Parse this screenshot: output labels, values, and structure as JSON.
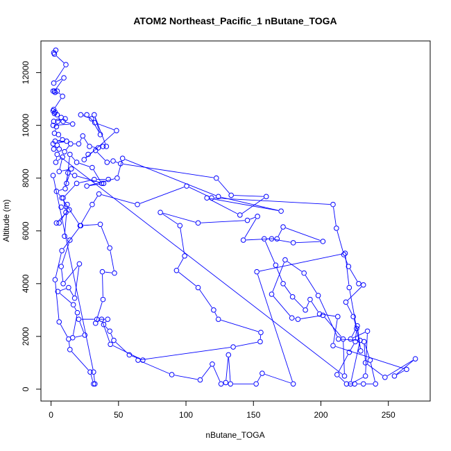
{
  "chart_data": {
    "type": "scatter",
    "title": "ATOM2 Northeast_Pacific_1 nButane_TOGA",
    "xlabel": "nButane_TOGA",
    "ylabel": "Altitude (m)",
    "xlim": [
      -7.5,
      281
    ],
    "ylim": [
      -450,
      13200
    ],
    "x_ticks": [
      0,
      50,
      100,
      150,
      200,
      250
    ],
    "y_ticks": [
      0,
      2000,
      4000,
      6000,
      8000,
      10000,
      12000
    ],
    "series_color": "#0000ff",
    "grid": false,
    "legend": "none",
    "series": [
      {
        "points": [
          [
            2.0,
            12750
          ],
          [
            3.5,
            12850
          ],
          [
            2.5,
            12700
          ],
          [
            11.0,
            12300
          ],
          [
            2.0,
            11600
          ],
          [
            9.5,
            11800
          ],
          [
            2.5,
            11300
          ],
          [
            3.0,
            11250
          ],
          [
            1.5,
            11300
          ],
          [
            4.5,
            11300
          ],
          [
            8.5,
            11100
          ],
          [
            2.0,
            10600
          ],
          [
            1.5,
            10550
          ],
          [
            3.0,
            10500
          ],
          [
            2.5,
            10450
          ],
          [
            4.5,
            10400
          ],
          [
            7.5,
            10300
          ],
          [
            10.5,
            10250
          ],
          [
            2.0,
            10150
          ],
          [
            5.0,
            10150
          ],
          [
            9.0,
            10150
          ],
          [
            16.0,
            10050
          ],
          [
            1.5,
            10000
          ],
          [
            4.0,
            9950
          ],
          [
            2.5,
            9700
          ],
          [
            5.5,
            9650
          ],
          [
            8.5,
            9450
          ],
          [
            3.0,
            9400
          ],
          [
            11.5,
            9400
          ],
          [
            1.5,
            9300
          ],
          [
            4.5,
            9250
          ],
          [
            2.0,
            9100
          ],
          [
            6.0,
            9100
          ],
          [
            10.0,
            9000
          ],
          [
            14.5,
            9300
          ],
          [
            20.5,
            9300
          ],
          [
            23.5,
            9600
          ],
          [
            28.5,
            9200
          ],
          [
            35.0,
            9150
          ],
          [
            38.5,
            9200
          ],
          [
            41.0,
            9200
          ],
          [
            32.0,
            10400
          ],
          [
            36.5,
            9650
          ],
          [
            30.0,
            10250
          ],
          [
            22.0,
            10400
          ],
          [
            26.5,
            10400
          ],
          [
            32.5,
            10100
          ],
          [
            48.5,
            9800
          ],
          [
            24.5,
            8700
          ],
          [
            27.5,
            8900
          ],
          [
            33.0,
            9050
          ],
          [
            41.5,
            8600
          ],
          [
            46.0,
            8650
          ],
          [
            51.5,
            8550
          ],
          [
            122.5,
            8000
          ],
          [
            133.5,
            7350
          ],
          [
            159.5,
            7300
          ],
          [
            140.0,
            6600
          ],
          [
            115.5,
            7250
          ],
          [
            170.5,
            6750
          ],
          [
            124.0,
            7300
          ],
          [
            53.0,
            8750
          ],
          [
            49.0,
            8000
          ],
          [
            26.5,
            7700
          ],
          [
            39.0,
            7800
          ],
          [
            17.5,
            8100
          ],
          [
            12.5,
            8200
          ],
          [
            10.5,
            7600
          ],
          [
            4.0,
            7500
          ],
          [
            8.0,
            7250
          ],
          [
            21.5,
            6200
          ],
          [
            30.5,
            7000
          ],
          [
            35.5,
            7400
          ],
          [
            64.0,
            7000
          ],
          [
            100.5,
            7700
          ],
          [
            119.0,
            7250
          ],
          [
            209.0,
            7000
          ],
          [
            211.5,
            6100
          ],
          [
            217.0,
            5100
          ],
          [
            220.5,
            4650
          ],
          [
            228.0,
            4000
          ],
          [
            231.5,
            3950
          ],
          [
            218.5,
            3300
          ],
          [
            224.0,
            2750
          ],
          [
            226.5,
            2300
          ],
          [
            225.5,
            1800
          ],
          [
            221.0,
            1400
          ],
          [
            212.0,
            550
          ],
          [
            219.0,
            200
          ],
          [
            225.0,
            200
          ],
          [
            231.5,
            200
          ],
          [
            240.5,
            200
          ],
          [
            236.5,
            1100
          ],
          [
            232.0,
            1800
          ],
          [
            233.0,
            1000
          ],
          [
            247.5,
            450
          ],
          [
            270.0,
            1150
          ],
          [
            254.5,
            500
          ],
          [
            263.5,
            750
          ],
          [
            209.0,
            1650
          ],
          [
            212.5,
            2750
          ],
          [
            199.0,
            2850
          ],
          [
            192.0,
            3400
          ],
          [
            188.5,
            3000
          ],
          [
            179.0,
            3500
          ],
          [
            172.0,
            4000
          ],
          [
            166.5,
            4700
          ],
          [
            158.0,
            5700
          ],
          [
            167.5,
            5700
          ],
          [
            172.0,
            6150
          ],
          [
            201.5,
            5600
          ],
          [
            179.5,
            5550
          ],
          [
            163.5,
            5700
          ],
          [
            142.5,
            5650
          ],
          [
            153.0,
            6550
          ],
          [
            145.5,
            6400
          ],
          [
            109.0,
            6300
          ],
          [
            81.0,
            6700
          ],
          [
            95.5,
            6200
          ],
          [
            99.0,
            5050
          ],
          [
            93.0,
            4500
          ],
          [
            109.0,
            3850
          ],
          [
            120.5,
            3000
          ],
          [
            124.0,
            2650
          ],
          [
            155.5,
            2150
          ],
          [
            155.0,
            1800
          ],
          [
            135.0,
            1600
          ],
          [
            64.5,
            1100
          ],
          [
            89.5,
            550
          ],
          [
            110.5,
            350
          ],
          [
            119.5,
            950
          ],
          [
            126.0,
            200
          ],
          [
            129.5,
            250
          ],
          [
            131.5,
            1300
          ],
          [
            133.0,
            200
          ],
          [
            152.0,
            200
          ],
          [
            156.5,
            600
          ],
          [
            179.5,
            200
          ],
          [
            152.5,
            4450
          ],
          [
            218.0,
            5150
          ],
          [
            221.0,
            3850
          ],
          [
            229.5,
            1450
          ],
          [
            227.0,
            2400
          ],
          [
            222.0,
            1900
          ],
          [
            234.5,
            2200
          ],
          [
            233.0,
            500
          ],
          [
            222.0,
            200
          ],
          [
            229.0,
            1850
          ],
          [
            213.0,
            1900
          ],
          [
            198.0,
            3550
          ],
          [
            187.5,
            4400
          ],
          [
            173.5,
            4900
          ],
          [
            163.5,
            3600
          ],
          [
            178.5,
            2700
          ],
          [
            183.0,
            2650
          ],
          [
            201.5,
            2800
          ],
          [
            216.5,
            1900
          ],
          [
            217.5,
            500
          ],
          [
            4.5,
            8900
          ],
          [
            3.5,
            8600
          ],
          [
            8.5,
            8800
          ],
          [
            6.0,
            8250
          ],
          [
            15.0,
            8350
          ],
          [
            11.5,
            7800
          ],
          [
            14.0,
            8900
          ],
          [
            19.0,
            8600
          ],
          [
            30.5,
            8400
          ],
          [
            37.5,
            7800
          ],
          [
            42.5,
            7950
          ],
          [
            32.0,
            7950
          ],
          [
            19.0,
            7800
          ],
          [
            9.0,
            7250
          ],
          [
            11.0,
            6700
          ],
          [
            6.0,
            6300
          ],
          [
            4.0,
            6300
          ],
          [
            13.5,
            6800
          ],
          [
            7.5,
            6900
          ],
          [
            12.0,
            7000
          ],
          [
            10.0,
            5800
          ],
          [
            14.0,
            5650
          ],
          [
            7.5,
            4650
          ],
          [
            9.0,
            4000
          ],
          [
            21.0,
            4750
          ],
          [
            17.5,
            3450
          ],
          [
            13.0,
            3850
          ],
          [
            5.0,
            3700
          ],
          [
            16.5,
            3200
          ],
          [
            19.5,
            2900
          ],
          [
            16.0,
            1950
          ],
          [
            25.0,
            2050
          ],
          [
            20.5,
            2650
          ],
          [
            34.0,
            2650
          ],
          [
            42.0,
            2650
          ],
          [
            39.0,
            2450
          ],
          [
            43.5,
            2200
          ],
          [
            46.5,
            1850
          ],
          [
            58.0,
            1300
          ],
          [
            68.0,
            1100
          ],
          [
            44.0,
            1700
          ],
          [
            37.5,
            2650
          ],
          [
            33.0,
            2500
          ],
          [
            38.5,
            3400
          ],
          [
            38.0,
            4450
          ],
          [
            47.0,
            4400
          ],
          [
            43.5,
            5350
          ],
          [
            36.5,
            6250
          ],
          [
            22.0,
            6200
          ],
          [
            8.0,
            5250
          ],
          [
            3.0,
            4150
          ],
          [
            6.0,
            2550
          ],
          [
            13.0,
            1900
          ],
          [
            14.0,
            1500
          ],
          [
            29.0,
            650
          ],
          [
            31.5,
            200
          ],
          [
            32.5,
            200
          ],
          [
            31.5,
            650
          ],
          [
            1.5,
            8100
          ]
        ]
      }
    ]
  }
}
